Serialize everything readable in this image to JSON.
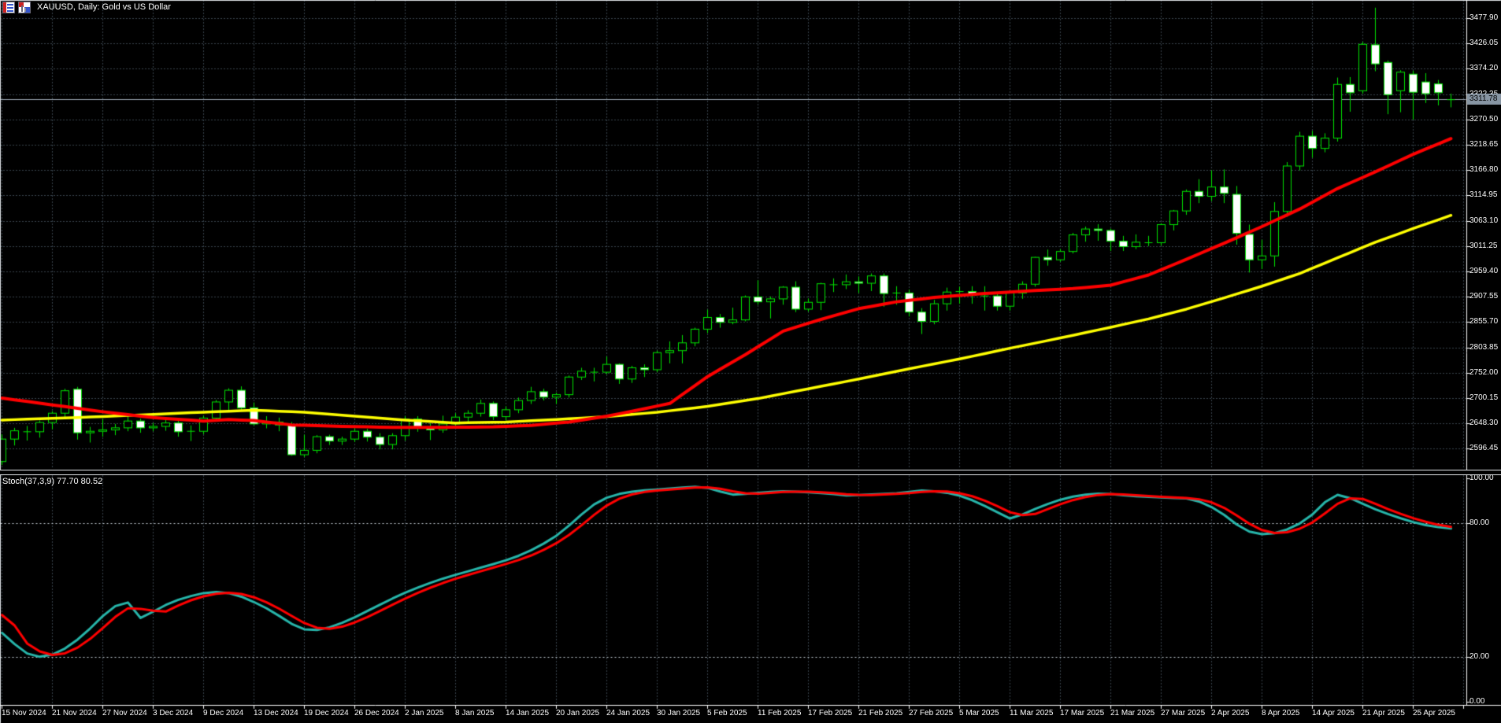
{
  "window": {
    "title": "XAUUSD, Daily:  Gold vs US Dollar",
    "icons": [
      "indicator-list-icon",
      "bar-chart-icon"
    ]
  },
  "colors": {
    "background": "#000000",
    "grid": "#72889c",
    "candle_outline": "#00e400",
    "bull_fill": "#000000",
    "bear_fill": "#ffffff",
    "ma_fast": "#ff0000",
    "ma_slow": "#ffff00",
    "stoch_main": "#27b5aa",
    "stoch_signal": "#ff0000",
    "current_price_line": "#98a4b0",
    "price_badge_bg": "#8795a3",
    "axis_text": "#ffffff"
  },
  "price_axis": {
    "ticks": [
      "3477.90",
      "3426.05",
      "3374.20",
      "3322.35",
      "3270.50",
      "3218.65",
      "3166.80",
      "3114.95",
      "3063.10",
      "3011.25",
      "2959.40",
      "2907.55",
      "2855.70",
      "2803.85",
      "2752.00",
      "2700.15",
      "2648.30",
      "2596.45"
    ],
    "tick_values": [
      3477.9,
      3426.05,
      3374.2,
      3322.35,
      3270.5,
      3218.65,
      3166.8,
      3114.95,
      3063.1,
      3011.25,
      2959.4,
      2907.55,
      2855.7,
      2803.85,
      2752.0,
      2700.15,
      2648.3,
      2596.45
    ],
    "current_price": "3311.78"
  },
  "time_axis": {
    "labels": [
      "15 Nov 2024",
      "21 Nov 2024",
      "27 Nov 2024",
      "3 Dec 2024",
      "9 Dec 2024",
      "13 Dec 2024",
      "19 Dec 2024",
      "26 Dec 2024",
      "2 Jan 2025",
      "8 Jan 2025",
      "14 Jan 2025",
      "20 Jan 2025",
      "24 Jan 2025",
      "30 Jan 2025",
      "5 Feb 2025",
      "11 Feb 2025",
      "17 Feb 2025",
      "21 Feb 2025",
      "27 Feb 2025",
      "5 Mar 2025",
      "11 Mar 2025",
      "17 Mar 2025",
      "21 Mar 2025",
      "27 Mar 2025",
      "2 Apr 2025",
      "8 Apr 2025",
      "14 Apr 2025",
      "21 Apr 2025",
      "25 Apr 2025"
    ]
  },
  "stoch_panel": {
    "label": "Stoch(37,3,9) 77.70 80.52",
    "axis_ticks": [
      "100.00",
      "80.00",
      "20.00",
      "0.00"
    ],
    "axis_tick_values": [
      100,
      80,
      20,
      0
    ],
    "level_lines": [
      80,
      20
    ]
  },
  "chart_data": {
    "type": "candlestick",
    "symbol": "XAUUSD",
    "timeframe": "Daily",
    "description": "Gold vs US Dollar",
    "current_price": 3311.78,
    "candles": {
      "dates": [
        "15 Nov",
        "18 Nov",
        "19 Nov",
        "20 Nov",
        "21 Nov",
        "22 Nov",
        "25 Nov",
        "26 Nov",
        "27 Nov",
        "28 Nov",
        "29 Nov",
        "2 Dec",
        "3 Dec",
        "4 Dec",
        "5 Dec",
        "6 Dec",
        "9 Dec",
        "10 Dec",
        "11 Dec",
        "12 Dec",
        "13 Dec",
        "16 Dec",
        "17 Dec",
        "18 Dec",
        "19 Dec",
        "20 Dec",
        "23 Dec",
        "24 Dec",
        "26 Dec",
        "27 Dec",
        "30 Dec",
        "31 Dec",
        "2 Jan",
        "3 Jan",
        "6 Jan",
        "7 Jan",
        "8 Jan",
        "9 Jan",
        "10 Jan",
        "13 Jan",
        "14 Jan",
        "15 Jan",
        "16 Jan",
        "17 Jan",
        "20 Jan",
        "21 Jan",
        "22 Jan",
        "23 Jan",
        "24 Jan",
        "27 Jan",
        "28 Jan",
        "29 Jan",
        "30 Jan",
        "31 Jan",
        "3 Feb",
        "4 Feb",
        "5 Feb",
        "6 Feb",
        "7 Feb",
        "10 Feb",
        "11 Feb",
        "12 Feb",
        "13 Feb",
        "14 Feb",
        "17 Feb",
        "18 Feb",
        "19 Feb",
        "20 Feb",
        "21 Feb",
        "24 Feb",
        "25 Feb",
        "26 Feb",
        "27 Feb",
        "28 Feb",
        "3 Mar",
        "4 Mar",
        "5 Mar",
        "6 Mar",
        "7 Mar",
        "10 Mar",
        "11 Mar",
        "12 Mar",
        "13 Mar",
        "14 Mar",
        "17 Mar",
        "18 Mar",
        "19 Mar",
        "20 Mar",
        "21 Mar",
        "24 Mar",
        "25 Mar",
        "26 Mar",
        "27 Mar",
        "28 Mar",
        "31 Mar",
        "1 Apr",
        "2 Apr",
        "3 Apr",
        "4 Apr",
        "7 Apr",
        "8 Apr",
        "9 Apr",
        "10 Apr",
        "11 Apr",
        "14 Apr",
        "15 Apr",
        "16 Apr",
        "17 Apr",
        "21 Apr",
        "22 Apr",
        "23 Apr",
        "24 Apr",
        "25 Apr",
        "28 Apr",
        "29 Apr",
        "30 Apr"
      ],
      "open": [
        2571,
        2617,
        2634,
        2632,
        2651,
        2670,
        2719,
        2630,
        2633,
        2636,
        2640,
        2654,
        2640,
        2643,
        2650,
        2632,
        2633,
        2660,
        2693,
        2717,
        2681,
        2648,
        2652,
        2646,
        2585,
        2594,
        2622,
        2613,
        2617,
        2633,
        2621,
        2606,
        2624,
        2658,
        2639,
        2636,
        2648,
        2662,
        2670,
        2690,
        2663,
        2677,
        2696,
        2714,
        2703,
        2708,
        2744,
        2756,
        2754,
        2770,
        2740,
        2763,
        2759,
        2794,
        2798,
        2814,
        2842,
        2866,
        2856,
        2861,
        2908,
        2898,
        2904,
        2928,
        2883,
        2897,
        2935,
        2933,
        2939,
        2936,
        2951,
        2915,
        2916,
        2877,
        2858,
        2894,
        2918,
        2919,
        2911,
        2910,
        2889,
        2916,
        2934,
        2989,
        2984,
        3001,
        3035,
        3047,
        3044,
        3022,
        3011,
        3020,
        3019,
        3056,
        3084,
        3124,
        3114,
        3133,
        3118,
        3036,
        2984,
        2992,
        3083,
        3176,
        3237,
        3212,
        3233,
        3343,
        3330,
        3424,
        3388,
        3330,
        3364,
        3348,
        3344,
        3314
      ],
      "high": [
        2627,
        2640,
        2644,
        2655,
        2674,
        2720,
        2724,
        2642,
        2658,
        2648,
        2666,
        2659,
        2650,
        2657,
        2655,
        2645,
        2665,
        2697,
        2721,
        2725,
        2692,
        2664,
        2661,
        2652,
        2626,
        2625,
        2626,
        2622,
        2639,
        2638,
        2629,
        2629,
        2664,
        2664,
        2650,
        2665,
        2670,
        2676,
        2698,
        2694,
        2684,
        2702,
        2724,
        2720,
        2712,
        2747,
        2763,
        2763,
        2786,
        2772,
        2767,
        2770,
        2798,
        2817,
        2830,
        2845,
        2882,
        2873,
        2886,
        2911,
        2942,
        2909,
        2930,
        2940,
        2905,
        2937,
        2946,
        2954,
        2950,
        2956,
        2956,
        2930,
        2923,
        2885,
        2902,
        2927,
        2929,
        2930,
        2930,
        2918,
        2922,
        2940,
        2990,
        3005,
        3006,
        3039,
        3052,
        3057,
        3048,
        3033,
        3036,
        3033,
        3059,
        3086,
        3128,
        3149,
        3167,
        3169,
        3135,
        3056,
        3025,
        3102,
        3184,
        3246,
        3248,
        3243,
        3357,
        3358,
        3430,
        3500,
        3392,
        3372,
        3371,
        3366,
        3352,
        3324
      ],
      "low": [
        2564,
        2604,
        2614,
        2620,
        2637,
        2662,
        2616,
        2610,
        2622,
        2625,
        2633,
        2630,
        2633,
        2634,
        2622,
        2613,
        2627,
        2653,
        2675,
        2675,
        2645,
        2639,
        2633,
        2583,
        2580,
        2588,
        2605,
        2605,
        2611,
        2612,
        2596,
        2596,
        2614,
        2632,
        2615,
        2630,
        2640,
        2652,
        2663,
        2656,
        2655,
        2670,
        2689,
        2696,
        2689,
        2702,
        2738,
        2735,
        2750,
        2730,
        2732,
        2744,
        2754,
        2772,
        2772,
        2807,
        2834,
        2845,
        2852,
        2858,
        2892,
        2864,
        2892,
        2877,
        2878,
        2881,
        2918,
        2924,
        2916,
        2920,
        2888,
        2892,
        2868,
        2832,
        2852,
        2880,
        2894,
        2894,
        2880,
        2880,
        2880,
        2904,
        2929,
        2972,
        2980,
        2997,
        3021,
        3023,
        3002,
        3002,
        3006,
        3012,
        3013,
        3044,
        3076,
        3100,
        3104,
        3100,
        3015,
        2958,
        2965,
        2970,
        3072,
        3167,
        3193,
        3204,
        3226,
        3287,
        3324,
        3370,
        3282,
        3286,
        3271,
        3305,
        3300,
        3296
      ],
      "close": [
        2617,
        2634,
        2632,
        2651,
        2670,
        2716,
        2630,
        2633,
        2636,
        2640,
        2654,
        2640,
        2643,
        2650,
        2632,
        2633,
        2660,
        2693,
        2717,
        2681,
        2648,
        2652,
        2646,
        2585,
        2594,
        2622,
        2613,
        2617,
        2633,
        2621,
        2606,
        2624,
        2658,
        2639,
        2636,
        2648,
        2662,
        2670,
        2690,
        2663,
        2677,
        2696,
        2714,
        2703,
        2708,
        2744,
        2756,
        2754,
        2770,
        2740,
        2763,
        2759,
        2794,
        2798,
        2814,
        2842,
        2866,
        2856,
        2861,
        2908,
        2898,
        2904,
        2928,
        2883,
        2897,
        2935,
        2933,
        2939,
        2936,
        2951,
        2915,
        2916,
        2877,
        2858,
        2894,
        2918,
        2919,
        2911,
        2910,
        2889,
        2916,
        2934,
        2989,
        2984,
        3001,
        3035,
        3047,
        3044,
        3022,
        3011,
        3020,
        3019,
        3056,
        3084,
        3124,
        3114,
        3133,
        3120,
        3038,
        2984,
        2992,
        3083,
        3176,
        3237,
        3212,
        3233,
        3343,
        3326,
        3425,
        3385,
        3322,
        3368,
        3327,
        3324,
        3326,
        3311.78
      ]
    },
    "overlays": [
      {
        "name": "ma-fast-red",
        "color": "#ff0000",
        "anchors": [
          [
            0,
            2701
          ],
          [
            4,
            2687
          ],
          [
            8,
            2673
          ],
          [
            12,
            2661
          ],
          [
            16,
            2654
          ],
          [
            18,
            2657
          ],
          [
            20,
            2655
          ],
          [
            23,
            2646
          ],
          [
            27,
            2643
          ],
          [
            31,
            2641
          ],
          [
            35,
            2641
          ],
          [
            39,
            2642
          ],
          [
            42,
            2645
          ],
          [
            45,
            2652
          ],
          [
            48,
            2664
          ],
          [
            50,
            2674
          ],
          [
            53,
            2690
          ],
          [
            56,
            2745
          ],
          [
            59,
            2790
          ],
          [
            62,
            2838
          ],
          [
            65,
            2862
          ],
          [
            68,
            2884
          ],
          [
            71,
            2898
          ],
          [
            74,
            2907
          ],
          [
            78,
            2915
          ],
          [
            82,
            2921
          ],
          [
            85,
            2925
          ],
          [
            88,
            2932
          ],
          [
            91,
            2953
          ],
          [
            94,
            2985
          ],
          [
            97,
            3018
          ],
          [
            100,
            3052
          ],
          [
            103,
            3088
          ],
          [
            106,
            3130
          ],
          [
            109,
            3164
          ],
          [
            112,
            3200
          ],
          [
            115,
            3232
          ]
        ]
      },
      {
        "name": "ma-slow-yellow",
        "color": "#ffff00",
        "anchors": [
          [
            0,
            2656
          ],
          [
            8,
            2663
          ],
          [
            14,
            2670
          ],
          [
            20,
            2676
          ],
          [
            24,
            2672
          ],
          [
            28,
            2664
          ],
          [
            32,
            2656
          ],
          [
            36,
            2650
          ],
          [
            40,
            2652
          ],
          [
            44,
            2657
          ],
          [
            48,
            2663
          ],
          [
            52,
            2672
          ],
          [
            56,
            2684
          ],
          [
            60,
            2700
          ],
          [
            64,
            2720
          ],
          [
            68,
            2740
          ],
          [
            72,
            2761
          ],
          [
            76,
            2781
          ],
          [
            80,
            2803
          ],
          [
            84,
            2824
          ],
          [
            88,
            2846
          ],
          [
            91,
            2863
          ],
          [
            94,
            2883
          ],
          [
            97,
            2906
          ],
          [
            100,
            2930
          ],
          [
            103,
            2956
          ],
          [
            106,
            2988
          ],
          [
            109,
            3020
          ],
          [
            112,
            3048
          ],
          [
            115,
            3075
          ]
        ]
      }
    ],
    "stochastic": {
      "k_period": 37,
      "d_period": 3,
      "slowing": 9,
      "current_k": 77.7,
      "current_d": 80.52,
      "range": [
        0,
        100
      ],
      "levels": [
        80,
        20
      ],
      "d_seed": [
        46,
        40
      ],
      "k": [
        31,
        26,
        21.8,
        20.3,
        21.3,
        24,
        28,
        33,
        38.5,
        43,
        44.6,
        37.7,
        40.5,
        43.5,
        45.8,
        47.5,
        48.8,
        49.3,
        48.8,
        47.2,
        44.8,
        42,
        38.6,
        35,
        32.6,
        32.3,
        33.5,
        35.5,
        38,
        40.8,
        43.6,
        46.4,
        49,
        51.3,
        53.4,
        55.3,
        57,
        58.6,
        60.2,
        61.8,
        63.5,
        65.5,
        68,
        71,
        74.5,
        79,
        84,
        88.5,
        91.5,
        93.2,
        94.2,
        94.8,
        95.2,
        95.6,
        96,
        96.4,
        95.9,
        94.3,
        92.9,
        93.2,
        93.7,
        94.1,
        94.4,
        94.2,
        93.9,
        93.6,
        93.1,
        92.5,
        92.7,
        93,
        93.2,
        93.5,
        94.1,
        94.7,
        94.4,
        93.7,
        92.4,
        90.4,
        87.8,
        85,
        82.2,
        84,
        86.5,
        88.7,
        90.6,
        92,
        92.9,
        93.3,
        93.1,
        92.6,
        92.2,
        91.9,
        91.6,
        91.4,
        91.2,
        89.8,
        87.3,
        83.8,
        79.5,
        76.3,
        75.2,
        75.6,
        77.3,
        80,
        84,
        89.5,
        92.8,
        91.3,
        88.8,
        86.3,
        84.2,
        82.3,
        80.6,
        79.2,
        78.3,
        77.7
      ]
    }
  }
}
